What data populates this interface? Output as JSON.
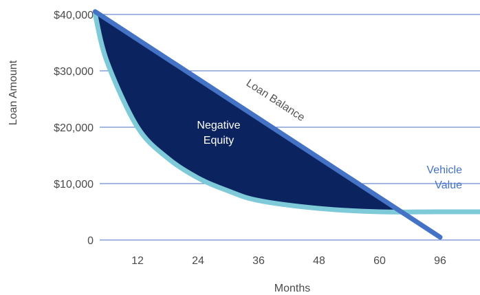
{
  "chart_data": {
    "type": "area",
    "title": "",
    "xlabel": "Months",
    "ylabel": "Loan Amount",
    "categories": [
      "12",
      "24",
      "36",
      "48",
      "60",
      "96"
    ],
    "y_ticks": [
      "$40,000",
      "$30,000",
      "$20,000",
      "$10,000",
      "0"
    ],
    "y_tick_values": [
      40000,
      30000,
      20000,
      10000,
      0
    ],
    "ylim": [
      0,
      40000
    ],
    "x_positions": [
      0,
      1,
      2,
      3,
      4,
      5
    ],
    "xlim": [
      -0.7,
      6.2
    ],
    "grid": true,
    "series": [
      {
        "name": "Loan Balance",
        "x": [
          -0.7,
          5.0
        ],
        "y": [
          40500,
          500
        ]
      },
      {
        "name": "Vehicle Value",
        "x": [
          -0.7,
          -0.5,
          0,
          0.5,
          1,
          1.5,
          2,
          3,
          4,
          5,
          6.1
        ],
        "y": [
          40000,
          31500,
          20000,
          14500,
          11000,
          8700,
          7000,
          5600,
          5000,
          5000,
          5000
        ]
      }
    ],
    "annotations": [
      {
        "text": "Negative Equity",
        "lines": [
          "Negative",
          "Equity"
        ]
      }
    ],
    "colors": {
      "loan_balance": "#4472c4",
      "vehicle_value": "#7ecad8",
      "negative_equity_fill": "#0b2460",
      "gridline": "#4472c4",
      "series_label": "#555555",
      "vehicle_label": "#4472c4",
      "annotation_text": "#ffffff"
    }
  }
}
